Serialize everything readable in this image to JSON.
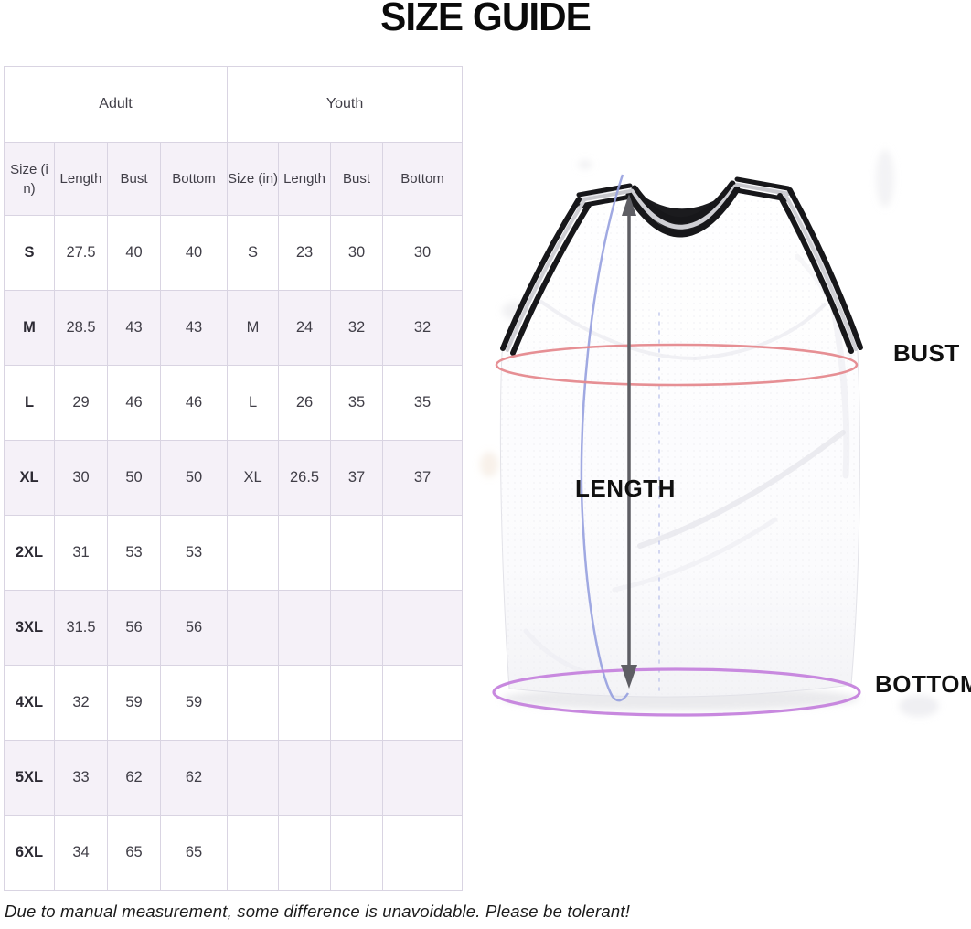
{
  "title": "SIZE GUIDE",
  "table": {
    "group_headers": [
      "Adult",
      "Youth"
    ],
    "column_headers": [
      "Size (in)",
      "Length",
      "Bust",
      "Bottom",
      "Size (in)",
      "Length",
      "Bust",
      "Bottom"
    ],
    "rows": [
      [
        "S",
        "27.5",
        "40",
        "40",
        "S",
        "23",
        "30",
        "30"
      ],
      [
        "M",
        "28.5",
        "43",
        "43",
        "M",
        "24",
        "32",
        "32"
      ],
      [
        "L",
        "29",
        "46",
        "46",
        "L",
        "26",
        "35",
        "35"
      ],
      [
        "XL",
        "30",
        "50",
        "50",
        "XL",
        "26.5",
        "37",
        "37"
      ],
      [
        "2XL",
        "31",
        "53",
        "53",
        "",
        "",
        "",
        ""
      ],
      [
        "3XL",
        "31.5",
        "56",
        "56",
        "",
        "",
        "",
        ""
      ],
      [
        "4XL",
        "32",
        "59",
        "59",
        "",
        "",
        "",
        ""
      ],
      [
        "5XL",
        "33",
        "62",
        "62",
        "",
        "",
        "",
        ""
      ],
      [
        "6XL",
        "34",
        "65",
        "65",
        "",
        "",
        "",
        ""
      ]
    ]
  },
  "diagram": {
    "bust_label": "BUST",
    "length_label": "LENGTH",
    "bottom_label": "BOTTOM",
    "colors": {
      "bust_ellipse": "#e5898e",
      "bottom_ellipse": "#c583dd",
      "length_arrow": "#5e5e64",
      "tape_curve": "#96a0df",
      "guide_dash": "#b6bde8",
      "row_alt_bg": "#f5f1f8",
      "table_border": "#d9d4e2"
    }
  },
  "footer": "Due to manual measurement, some difference is unavoidable. Please be tolerant!"
}
